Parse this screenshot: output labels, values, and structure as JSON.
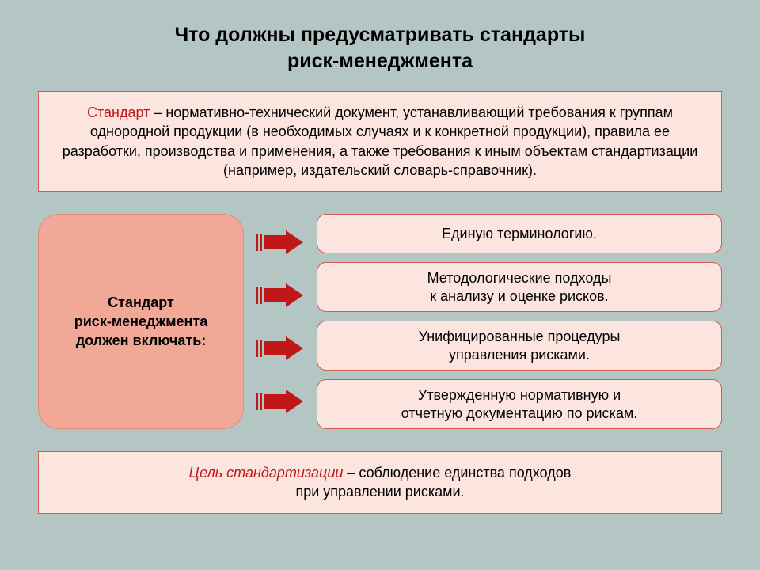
{
  "colors": {
    "slide_bg": "#b3c6c4",
    "box_bg": "#fce5df",
    "box_border": "#d95b4a",
    "left_box_bg": "#f1a896",
    "left_box_border": "#e88a74",
    "arrow_color": "#c01818",
    "shadow": "#6a7f80",
    "text": "#000000",
    "term_color": "#c01818"
  },
  "typography": {
    "title_size": 25,
    "body_size": 18,
    "item_size": 18,
    "left_box_size": 18
  },
  "title": {
    "line1": "Что должны предусматривать стандарты",
    "line2": "риск-менеджмента"
  },
  "definition": {
    "term": "Стандарт",
    "text": " – нормативно-технический документ, устанавливающий требования к группам однородной продукции (в необходимых случаях и к конкретной продукции), правила ее разработки, производства и применения, а также требования к иным объектам стандартизации (например, издательский словарь-справочник)."
  },
  "left_box": {
    "line1": "Стандарт",
    "line2": "риск-менеджмента",
    "line3": "должен включать:"
  },
  "items": [
    {
      "line1": "Единую терминологию.",
      "line2": ""
    },
    {
      "line1": "Методологические подходы",
      "line2": "к анализу и оценке рисков."
    },
    {
      "line1": "Унифицированные процедуры",
      "line2": "управления рисками."
    },
    {
      "line1": "Утвержденную нормативную и",
      "line2": "отчетную документацию по рискам."
    }
  ],
  "goal": {
    "term": "Цель стандартизации",
    "text": " – соблюдение единства подходов",
    "text2": "при управлении рисками."
  }
}
